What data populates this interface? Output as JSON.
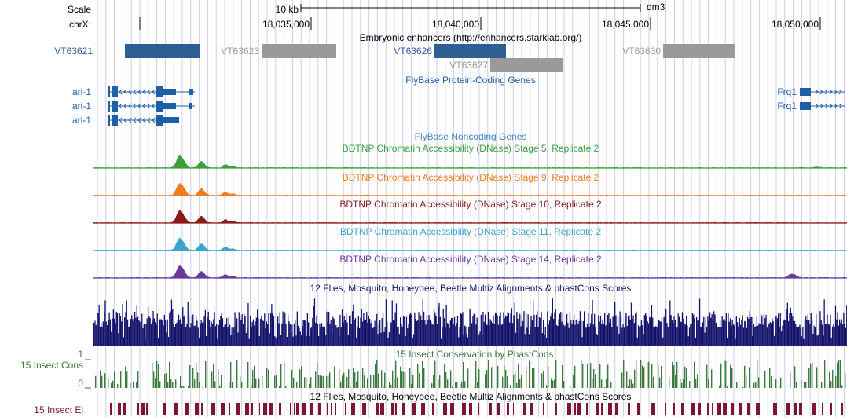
{
  "ruler": {
    "scale_label": "Scale",
    "scale_value": "10 kb",
    "assembly": "dm3",
    "chrom_label": "chrX:",
    "ticks": [
      "18,035,000",
      "18,040,000",
      "18,045,000",
      "18,050,000"
    ]
  },
  "enhancers": {
    "title": "Embryonic enhancers (http://enhancers.starklab.org/)",
    "items": [
      {
        "label": "VT63621",
        "color": "#2e5f94"
      },
      {
        "label": "VT63623",
        "color": "#9a9a9a"
      },
      {
        "label": "VT63626",
        "color": "#2e5f94"
      },
      {
        "label": "VT63627",
        "color": "#9a9a9a"
      },
      {
        "label": "VT63630",
        "color": "#9a9a9a"
      }
    ]
  },
  "genes": {
    "title": "FlyBase Protein-Coding Genes",
    "color": "#1f5fa6",
    "left_gene": "ari-1",
    "right_gene": "Frq1"
  },
  "noncoding": {
    "title": "FlyBase Noncoding Genes",
    "color": "#3d86c6"
  },
  "dnase_tracks": [
    {
      "title": "BDTNP Chromatin Accessibility (DNase) Stage 5, Replicate 2",
      "color": "#3aa03a"
    },
    {
      "title": "BDTNP Chromatin Accessibility (DNase) Stage 9, Replicate 2",
      "color": "#f07c1f"
    },
    {
      "title": "BDTNP Chromatin Accessibility (DNase) Stage 10, Replicate 2",
      "color": "#8b1a1a"
    },
    {
      "title": "BDTNP Chromatin Accessibility (DNase) Stage 11, Replicate 2",
      "color": "#3aa6cf"
    },
    {
      "title": "BDTNP Chromatin Accessibility (DNase) Stage 14, Replicate 2",
      "color": "#6a3a9a"
    }
  ],
  "multiz": {
    "title": "12 Flies, Mosquito, Honeybee, Beetle Multiz Alignments & phastCons Scores",
    "color": "#13136b"
  },
  "cons15": {
    "title": "15 Insect Conservation by PhastCons",
    "side_label": "15 Insect Cons",
    "y_max": "1",
    "y_min": "0",
    "color": "#3d7a3d"
  },
  "elements": {
    "title": "12 Flies, Mosquito, Honeybee, Beetle Multiz Alignments & phastCons Scores",
    "side_label": "15 Insect El",
    "color": "#7d1632"
  },
  "colors": {
    "grid": "#ccccee",
    "pink_line": "#f0b0b0"
  }
}
